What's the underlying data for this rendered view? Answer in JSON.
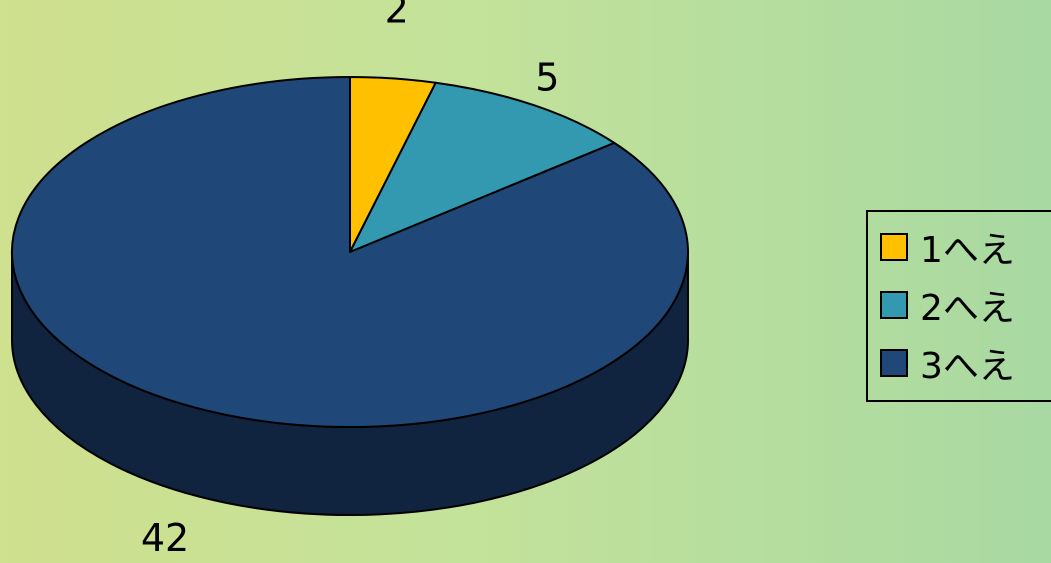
{
  "chart_data": {
    "type": "pie",
    "style": "3d",
    "categories": [
      "1へえ",
      "2へえ",
      "3へえ"
    ],
    "values": [
      2,
      5,
      42
    ],
    "colors": [
      "#ffc000",
      "#3399b0",
      "#1f4878"
    ],
    "side_colors": [
      "#8a6a00",
      "#1b5a68",
      "#102440"
    ],
    "data_labels": [
      "2",
      "5",
      "42"
    ],
    "legend": {
      "position": "right",
      "items": [
        {
          "label": "1へえ",
          "color": "#ffc000"
        },
        {
          "label": "2へえ",
          "color": "#3399b0"
        },
        {
          "label": "3へえ",
          "color": "#1f4878"
        }
      ]
    }
  }
}
